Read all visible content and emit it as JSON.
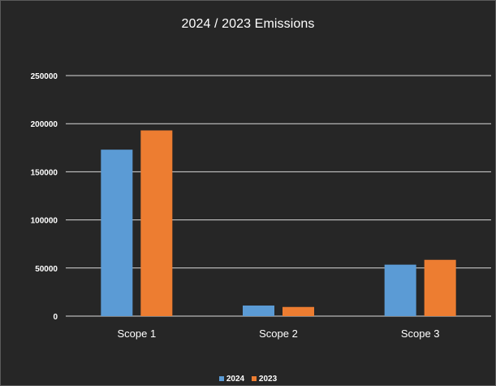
{
  "chart_data": {
    "type": "bar",
    "title": "2024 / 2023 Emissions",
    "xlabel": "",
    "ylabel": "",
    "categories": [
      "Scope 1",
      "Scope 2",
      "Scope 3"
    ],
    "series": [
      {
        "name": "2024",
        "values": [
          173000,
          11000,
          53500
        ],
        "color": "#5b9bd5"
      },
      {
        "name": "2023",
        "values": [
          193000,
          9500,
          58500
        ],
        "color": "#ed7d31"
      }
    ],
    "ylim": [
      0,
      250000
    ],
    "yticks": [
      "0",
      "50000",
      "100000",
      "150000",
      "200000",
      "250000"
    ],
    "grid": true,
    "legend_position": "bottom",
    "background": "#262626",
    "gridline_color": "#d9d9d9",
    "text_color": "#ffffff"
  }
}
